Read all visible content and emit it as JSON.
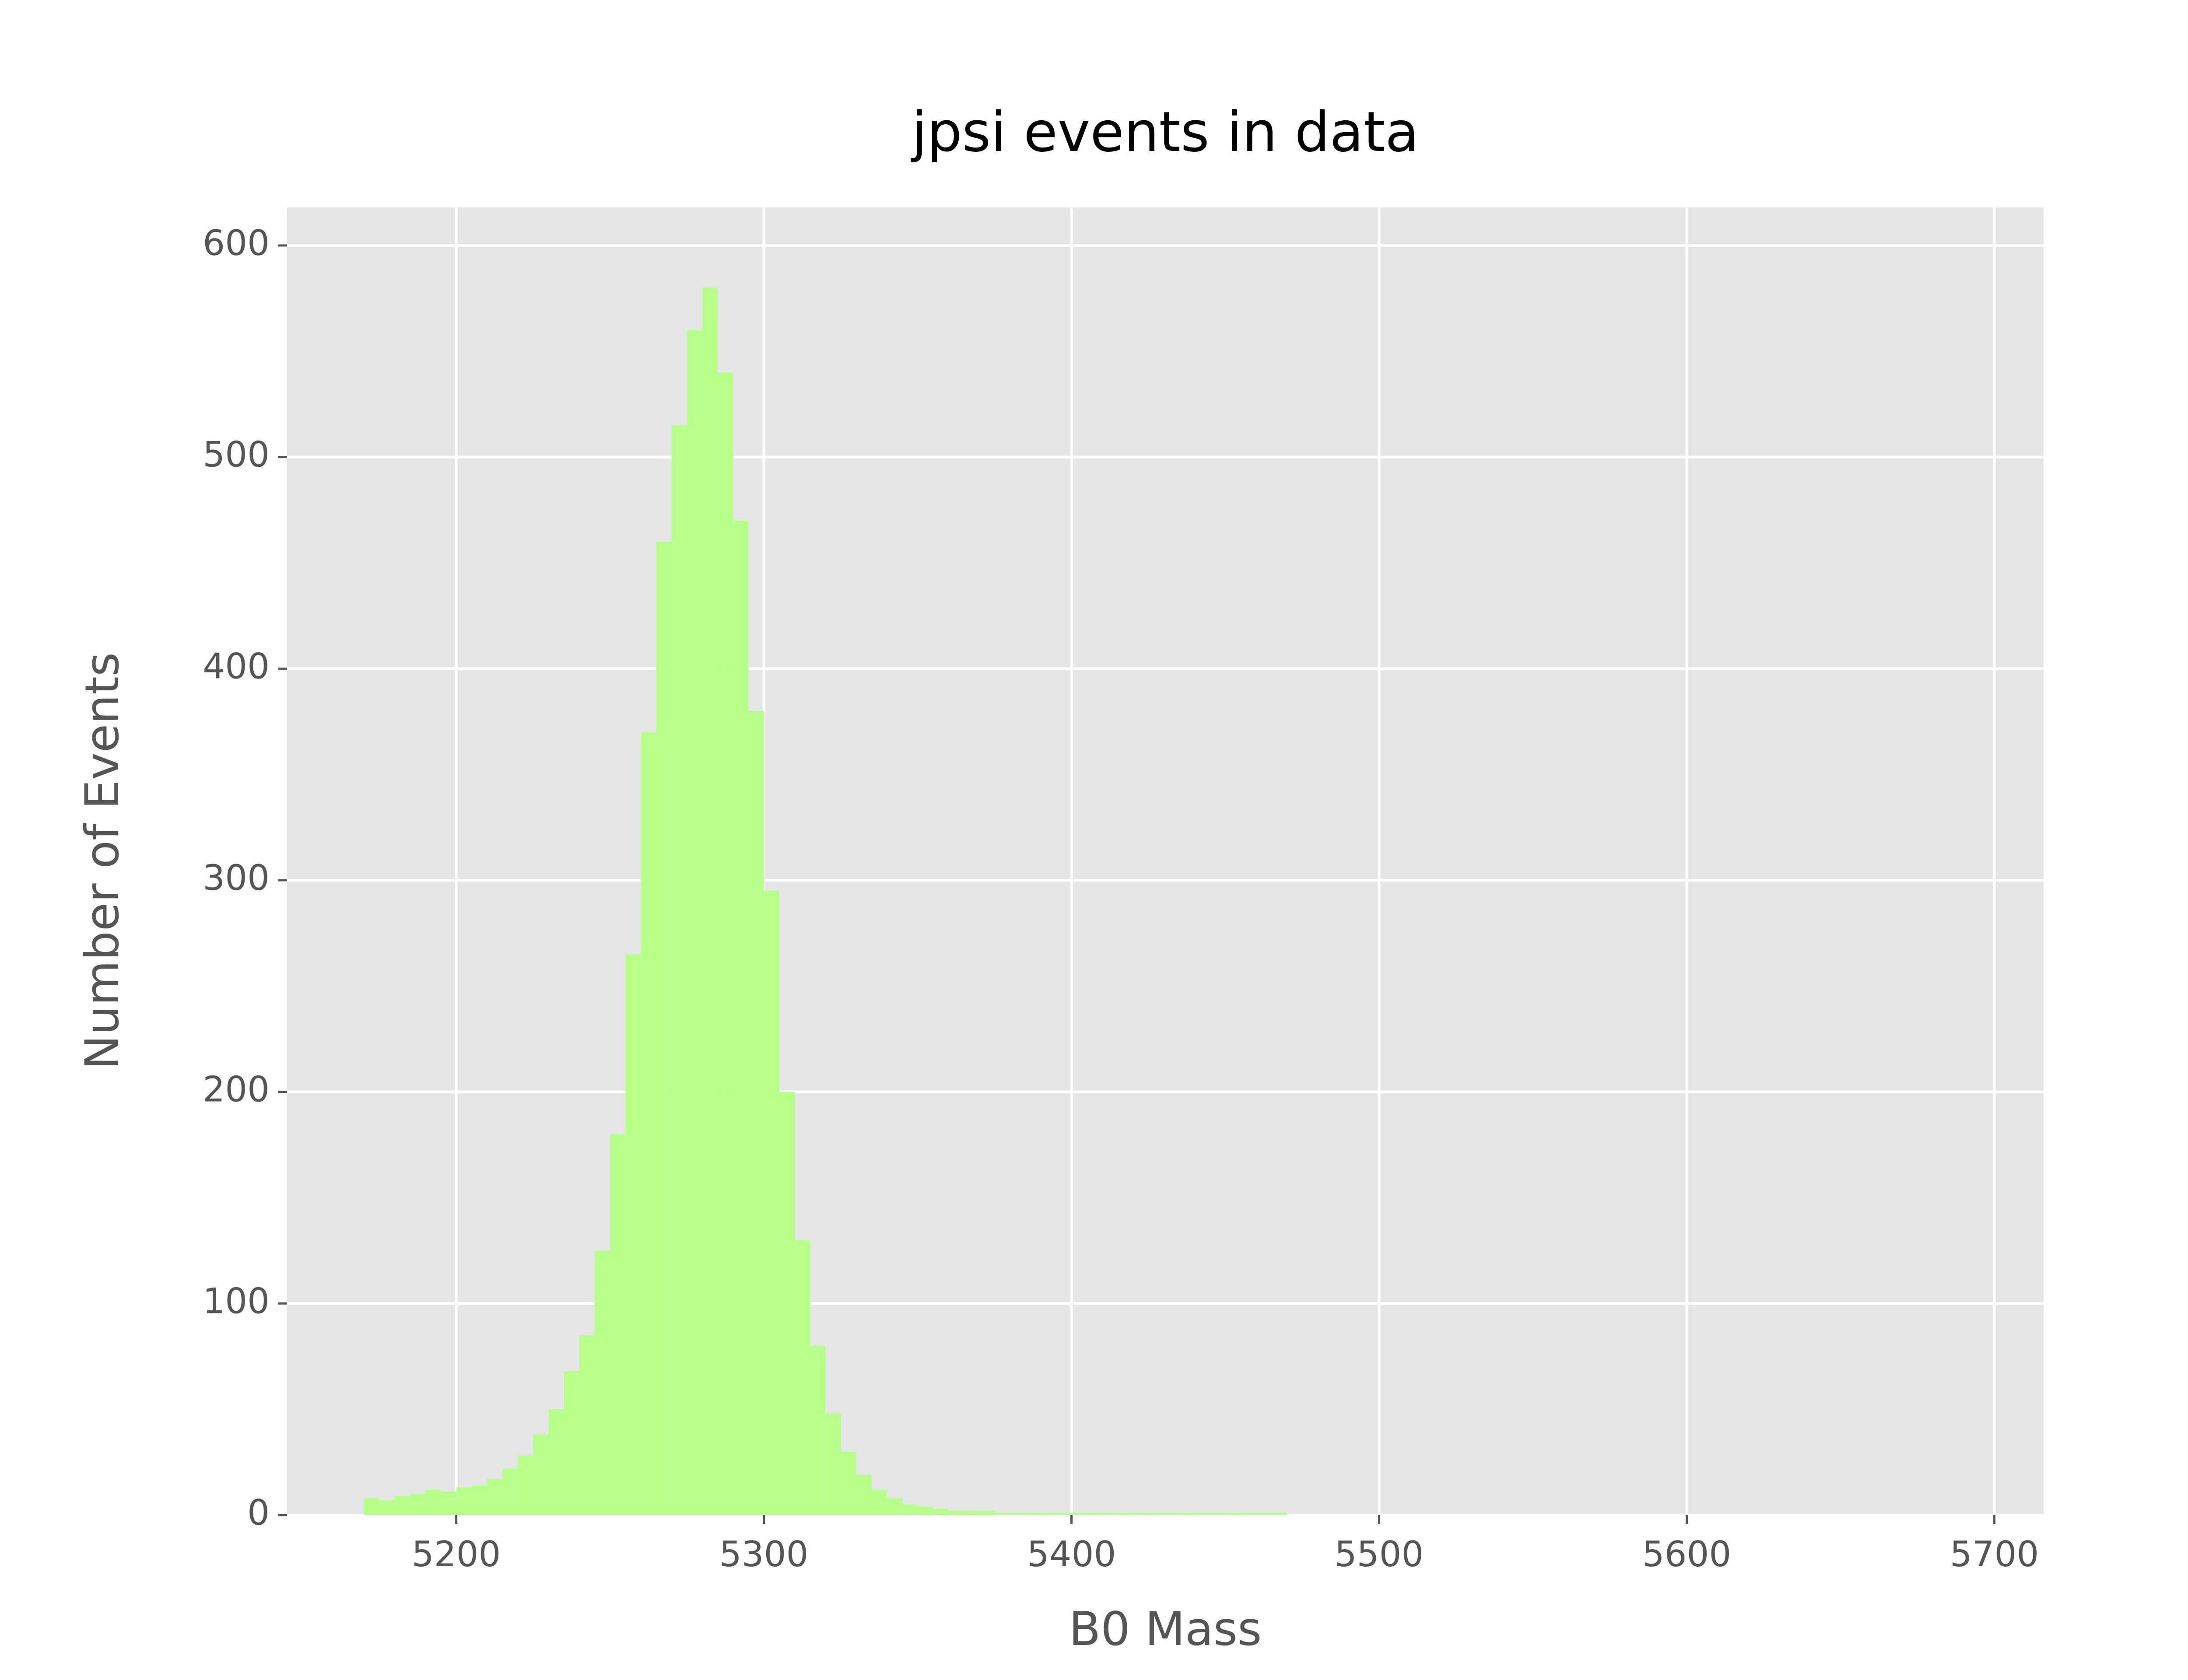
{
  "chart_data": {
    "type": "histogram",
    "title": "jpsi events in data",
    "xlabel": "B0 Mass",
    "ylabel": "Number of Events",
    "color": "#b6ff8a",
    "grid": true,
    "bins": [
      5170,
      5175,
      5180,
      5185,
      5190,
      5195,
      5200,
      5205,
      5210,
      5215,
      5220,
      5225,
      5230,
      5235,
      5240,
      5245,
      5250,
      5255,
      5260,
      5265,
      5270,
      5275,
      5280,
      5285,
      5290,
      5295,
      5300,
      5305,
      5310,
      5315,
      5320,
      5325,
      5330,
      5335,
      5340,
      5345,
      5350,
      5355,
      5360,
      5365,
      5370,
      5375,
      5380,
      5385,
      5390,
      5395,
      5400,
      5405,
      5410,
      5415,
      5420,
      5425,
      5430,
      5435,
      5440,
      5445,
      5450,
      5455,
      5460,
      5465,
      5470,
      5475,
      5480,
      5485,
      5490,
      5495,
      5500,
      5505,
      5510,
      5515,
      5520,
      5525,
      5530,
      5535,
      5540,
      5545,
      5550,
      5555,
      5560,
      5565,
      5570,
      5575,
      5580,
      5585,
      5590,
      5595,
      5600,
      5605,
      5610,
      5615,
      5620,
      5625,
      5630,
      5635,
      5640,
      5645,
      5650,
      5655,
      5660,
      5665,
      5670,
      5675,
      5680,
      5685,
      5690,
      5695,
      5700
    ],
    "values": [
      8,
      7,
      9,
      10,
      12,
      11,
      13,
      14,
      17,
      22,
      28,
      38,
      50,
      68,
      85,
      125,
      180,
      265,
      370,
      460,
      515,
      560,
      580,
      540,
      470,
      380,
      295,
      200,
      130,
      80,
      48,
      30,
      19,
      12,
      8,
      5,
      4,
      3,
      2,
      2,
      2,
      1,
      1,
      1,
      1,
      1,
      1,
      1,
      1,
      1,
      1,
      1,
      1,
      1,
      1,
      1,
      1,
      1,
      1,
      1,
      0,
      0,
      0,
      0,
      0,
      0,
      0,
      0,
      0,
      0,
      0,
      0,
      0,
      0,
      0,
      0,
      0,
      0,
      0,
      0,
      0,
      0,
      0,
      0,
      0,
      0,
      0,
      0,
      0,
      0,
      0,
      0,
      0,
      0,
      0,
      0,
      0,
      0,
      0,
      0,
      0,
      0,
      0,
      0,
      0,
      0
    ],
    "xlim": [
      5145,
      5716
    ],
    "ylim": [
      0,
      618
    ],
    "xticks": [
      5200,
      5300,
      5400,
      5500,
      5600,
      5700
    ],
    "yticks": [
      0,
      100,
      200,
      300,
      400,
      500,
      600
    ]
  }
}
